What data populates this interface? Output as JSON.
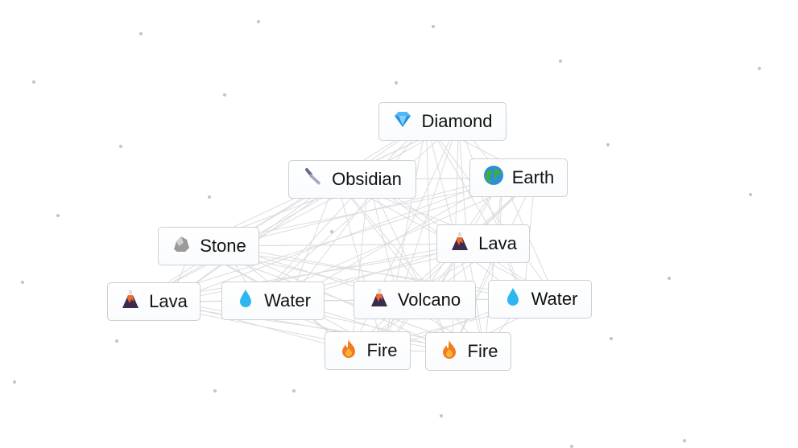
{
  "canvas": {
    "items": [
      {
        "label": "Diamond",
        "icon": "diamond-icon"
      },
      {
        "label": "Obsidian",
        "icon": "knife-icon"
      },
      {
        "label": "Earth",
        "icon": "globe-icon"
      },
      {
        "label": "Stone",
        "icon": "rock-icon"
      },
      {
        "label": "Lava",
        "icon": "volcano-icon"
      },
      {
        "label": "Lava",
        "icon": "volcano-icon"
      },
      {
        "label": "Water",
        "icon": "droplet-icon"
      },
      {
        "label": "Volcano",
        "icon": "volcano-icon"
      },
      {
        "label": "Water",
        "icon": "droplet-icon"
      },
      {
        "label": "Fire",
        "icon": "fire-icon"
      },
      {
        "label": "Fire",
        "icon": "fire-icon"
      }
    ]
  },
  "colors": {
    "line": "#dcdcdc",
    "border": "#c8d0d8",
    "particle": "#c4c4c4"
  }
}
